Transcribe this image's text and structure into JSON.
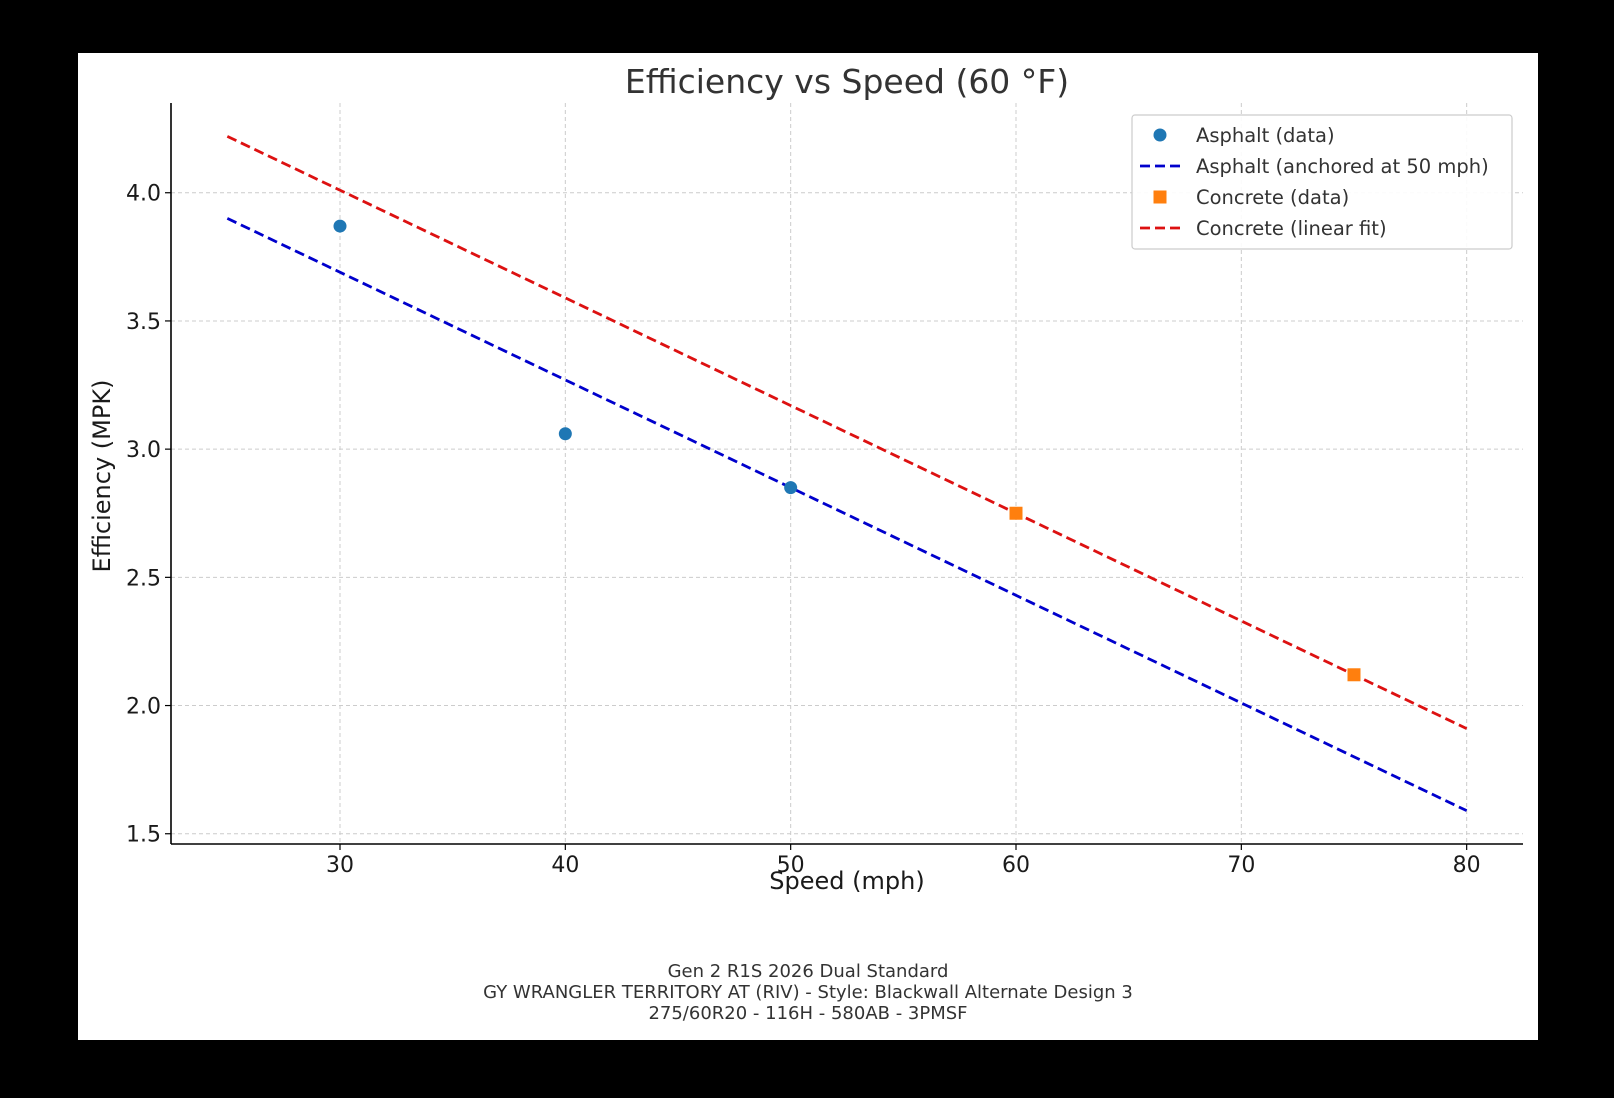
{
  "chart_data": {
    "type": "scatter",
    "title": "Efficiency vs Speed (60 °F)",
    "xlabel": "Speed (mph)",
    "ylabel": "Efficiency (MPK)",
    "xlim": [
      22.5,
      82.5
    ],
    "ylim": [
      1.46,
      4.35
    ],
    "x_ticks": [
      30,
      40,
      50,
      60,
      70,
      80
    ],
    "x_tick_labels": [
      "30",
      "40",
      "50",
      "60",
      "70",
      "80"
    ],
    "y_ticks": [
      1.5,
      2.0,
      2.5,
      3.0,
      3.5,
      4.0
    ],
    "y_tick_labels": [
      "1.5",
      "2.0",
      "2.5",
      "3.0",
      "3.5",
      "4.0"
    ],
    "grid": true,
    "legend_position": "top-right",
    "series": [
      {
        "name": "Asphalt (data)",
        "kind": "points",
        "marker": "circle",
        "color": "#1f77b4",
        "x": [
          30,
          40,
          50
        ],
        "y": [
          3.87,
          3.06,
          2.85
        ]
      },
      {
        "name": "Asphalt (anchored at 50 mph)",
        "kind": "dashed-line",
        "color": "#0000cc",
        "x": [
          25,
          80
        ],
        "y": [
          3.9,
          1.59
        ]
      },
      {
        "name": "Concrete (data)",
        "kind": "points",
        "marker": "square",
        "color": "#ff7f0e",
        "x": [
          60,
          75
        ],
        "y": [
          2.75,
          2.12
        ]
      },
      {
        "name": "Concrete (linear fit)",
        "kind": "dashed-line",
        "color": "#dd1111",
        "x": [
          25,
          80
        ],
        "y": [
          4.22,
          1.91
        ]
      }
    ]
  },
  "footer": {
    "line1": "Gen 2 R1S 2026 Dual Standard",
    "line2": "GY WRANGLER TERRITORY AT (RIV) - Style: Blackwall Alternate Design 3",
    "line3": "275/60R20 - 116H - 580AB - 3PMSF"
  }
}
